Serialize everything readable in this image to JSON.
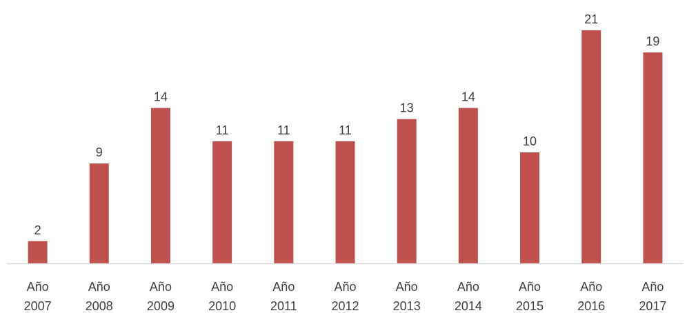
{
  "chart_data": {
    "type": "bar",
    "categories": [
      [
        "Año",
        "2007"
      ],
      [
        "Año",
        "2008"
      ],
      [
        "Año",
        "2009"
      ],
      [
        "Año",
        "2010"
      ],
      [
        "Año",
        "2011"
      ],
      [
        "Año",
        "2012"
      ],
      [
        "Año",
        "2013"
      ],
      [
        "Año",
        "2014"
      ],
      [
        "Año",
        "2015"
      ],
      [
        "Año",
        "2016"
      ],
      [
        "Año",
        "2017"
      ]
    ],
    "values": [
      2,
      9,
      14,
      11,
      11,
      11,
      13,
      14,
      10,
      21,
      19
    ],
    "data_labels": true,
    "grid": false,
    "legend": "none",
    "bar_color": "#C0504D",
    "axis_color": "#D9D9D9",
    "text_color": "#404040"
  }
}
